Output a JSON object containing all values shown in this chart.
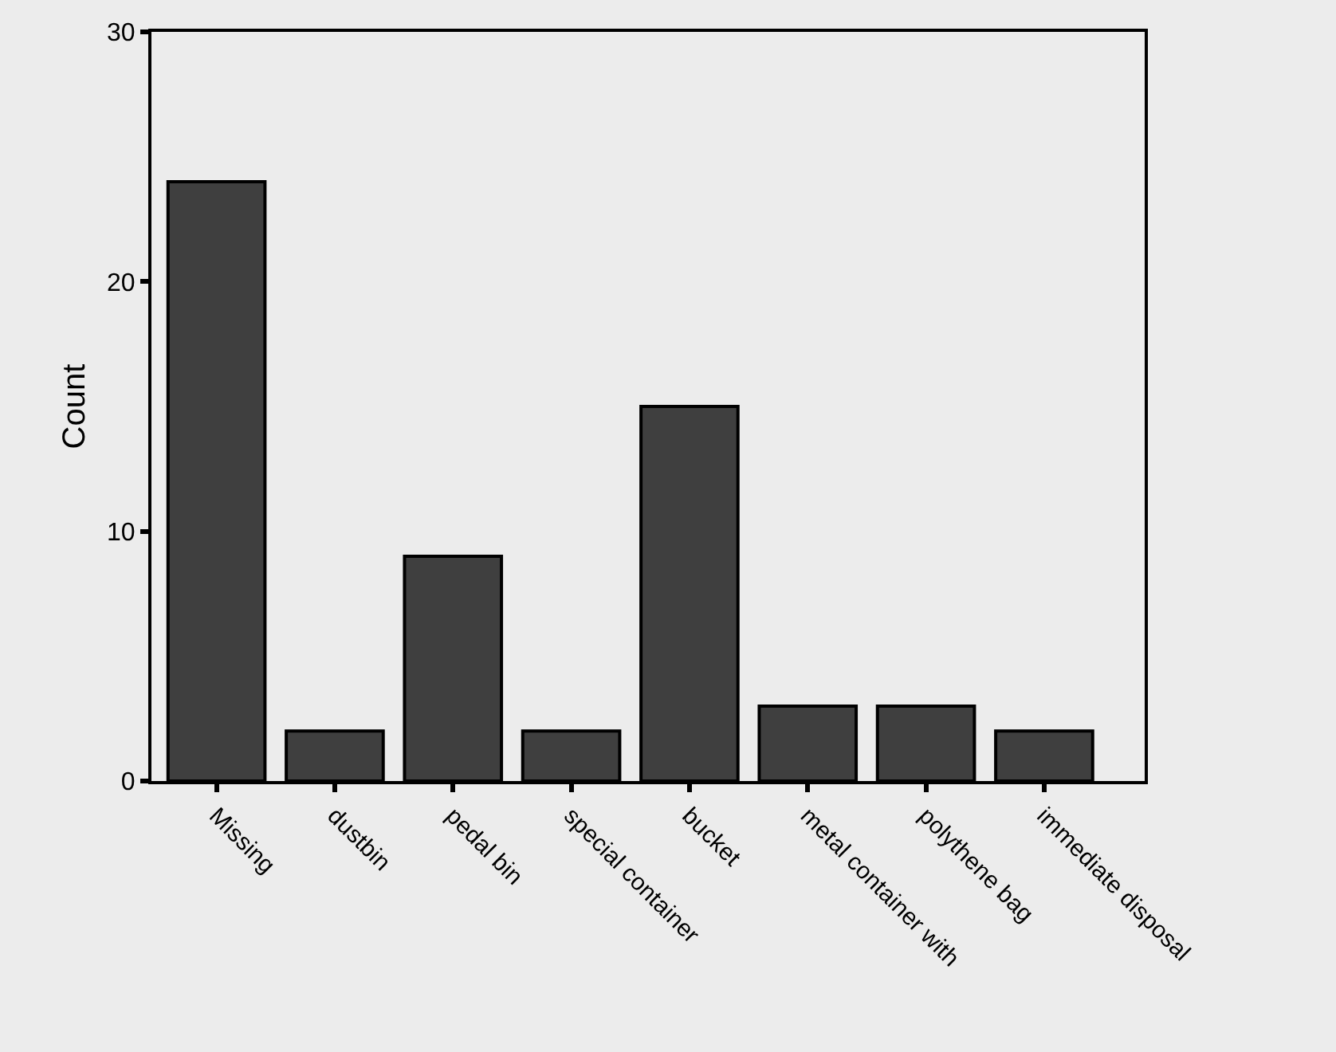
{
  "chart_data": {
    "type": "bar",
    "ylabel": "Count",
    "categories": [
      "Missing",
      "dustbin",
      "pedal bin",
      "special container",
      "bucket",
      "metal container with",
      "polythene bag",
      "immediate disposal"
    ],
    "values": [
      24,
      2,
      9,
      2,
      15,
      3,
      3,
      2
    ],
    "color": "#3f3f3f",
    "ylim": [
      0,
      30
    ],
    "yticks": [
      0,
      10,
      20,
      30
    ],
    "grid": false
  }
}
